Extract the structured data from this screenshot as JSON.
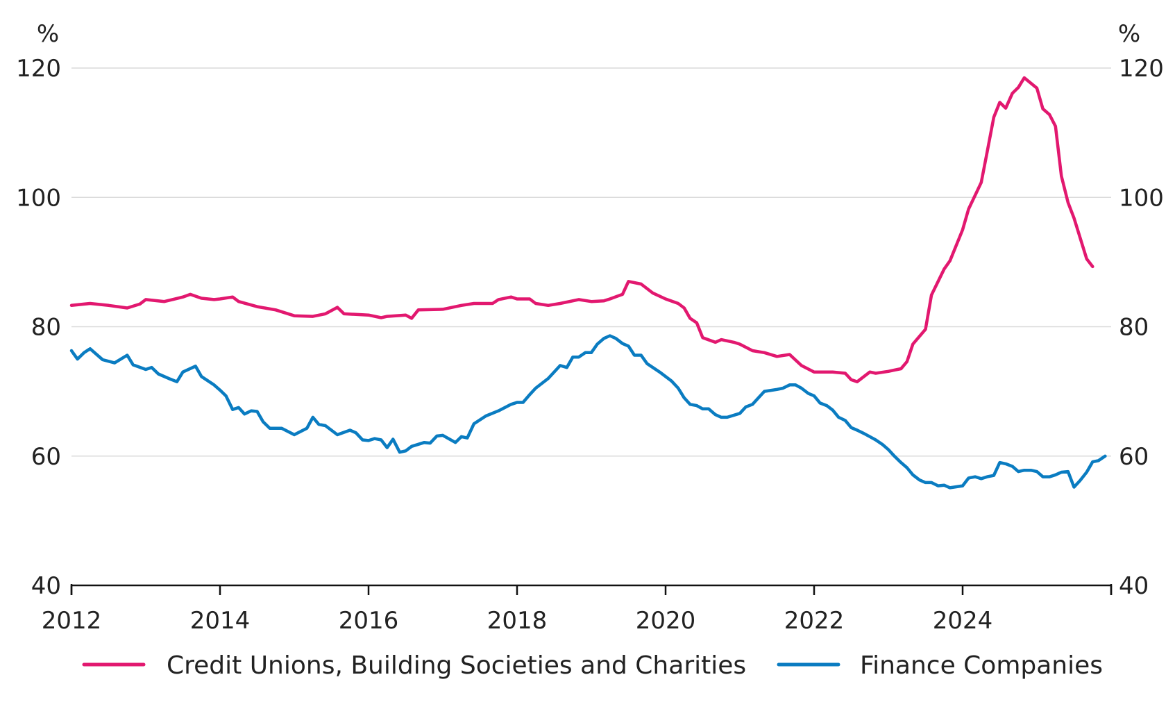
{
  "chart_data": {
    "type": "line",
    "left_unit": "%",
    "right_unit": "%",
    "xlim": [
      2012,
      2026
    ],
    "ylim": [
      40,
      120
    ],
    "yticks": [
      40,
      60,
      80,
      100,
      120
    ],
    "xticks": [
      2012,
      2014,
      2016,
      2018,
      2020,
      2022,
      2024
    ],
    "grid": true,
    "legend_position": "bottom",
    "series": [
      {
        "name": "Credit Unions, Building Societies and Charities",
        "color": "#e2186f",
        "points": [
          [
            2012.0,
            83.3
          ],
          [
            2012.25,
            83.6
          ],
          [
            2012.5,
            83.3
          ],
          [
            2012.75,
            82.9
          ],
          [
            2012.92,
            83.5
          ],
          [
            2013.0,
            84.2
          ],
          [
            2013.25,
            83.9
          ],
          [
            2013.5,
            84.6
          ],
          [
            2013.6,
            85.0
          ],
          [
            2013.75,
            84.4
          ],
          [
            2013.92,
            84.2
          ],
          [
            2014.0,
            84.3
          ],
          [
            2014.17,
            84.6
          ],
          [
            2014.25,
            83.9
          ],
          [
            2014.5,
            83.1
          ],
          [
            2014.75,
            82.6
          ],
          [
            2015.0,
            81.7
          ],
          [
            2015.25,
            81.6
          ],
          [
            2015.42,
            82.0
          ],
          [
            2015.58,
            83.0
          ],
          [
            2015.67,
            82.0
          ],
          [
            2016.0,
            81.8
          ],
          [
            2016.17,
            81.4
          ],
          [
            2016.25,
            81.6
          ],
          [
            2016.5,
            81.8
          ],
          [
            2016.58,
            81.3
          ],
          [
            2016.67,
            82.6
          ],
          [
            2017.0,
            82.7
          ],
          [
            2017.25,
            83.3
          ],
          [
            2017.42,
            83.6
          ],
          [
            2017.67,
            83.6
          ],
          [
            2017.75,
            84.2
          ],
          [
            2017.92,
            84.6
          ],
          [
            2018.0,
            84.3
          ],
          [
            2018.17,
            84.3
          ],
          [
            2018.25,
            83.6
          ],
          [
            2018.42,
            83.3
          ],
          [
            2018.58,
            83.6
          ],
          [
            2018.83,
            84.2
          ],
          [
            2019.0,
            83.9
          ],
          [
            2019.17,
            84.0
          ],
          [
            2019.25,
            84.3
          ],
          [
            2019.42,
            85.0
          ],
          [
            2019.5,
            87.0
          ],
          [
            2019.67,
            86.6
          ],
          [
            2019.83,
            85.2
          ],
          [
            2020.0,
            84.3
          ],
          [
            2020.17,
            83.6
          ],
          [
            2020.25,
            82.9
          ],
          [
            2020.33,
            81.3
          ],
          [
            2020.42,
            80.6
          ],
          [
            2020.5,
            78.3
          ],
          [
            2020.67,
            77.6
          ],
          [
            2020.75,
            78.0
          ],
          [
            2020.92,
            77.6
          ],
          [
            2021.0,
            77.3
          ],
          [
            2021.17,
            76.3
          ],
          [
            2021.33,
            76.0
          ],
          [
            2021.5,
            75.4
          ],
          [
            2021.67,
            75.7
          ],
          [
            2021.83,
            74.0
          ],
          [
            2022.0,
            73.0
          ],
          [
            2022.25,
            73.0
          ],
          [
            2022.42,
            72.8
          ],
          [
            2022.5,
            71.8
          ],
          [
            2022.58,
            71.5
          ],
          [
            2022.75,
            73.0
          ],
          [
            2022.83,
            72.8
          ],
          [
            2023.0,
            73.1
          ],
          [
            2023.08,
            73.3
          ],
          [
            2023.17,
            73.5
          ],
          [
            2023.25,
            74.6
          ],
          [
            2023.33,
            77.3
          ],
          [
            2023.5,
            79.6
          ],
          [
            2023.58,
            84.9
          ],
          [
            2023.75,
            88.9
          ],
          [
            2023.83,
            90.2
          ],
          [
            2024.0,
            95.0
          ],
          [
            2024.08,
            98.2
          ],
          [
            2024.25,
            102.3
          ],
          [
            2024.33,
            107.0
          ],
          [
            2024.42,
            112.4
          ],
          [
            2024.5,
            114.7
          ],
          [
            2024.58,
            113.8
          ],
          [
            2024.67,
            116.1
          ],
          [
            2024.75,
            117.0
          ],
          [
            2024.83,
            118.5
          ],
          [
            2025.0,
            116.9
          ],
          [
            2025.08,
            113.7
          ],
          [
            2025.17,
            112.8
          ],
          [
            2025.25,
            111.0
          ],
          [
            2025.33,
            103.3
          ],
          [
            2025.42,
            99.2
          ],
          [
            2025.5,
            96.8
          ],
          [
            2025.67,
            90.5
          ],
          [
            2025.75,
            89.3
          ]
        ]
      },
      {
        "name": "Finance Companies",
        "color": "#0a7cc1",
        "points": [
          [
            2012.0,
            76.3
          ],
          [
            2012.08,
            75.0
          ],
          [
            2012.17,
            76.0
          ],
          [
            2012.25,
            76.6
          ],
          [
            2012.42,
            74.9
          ],
          [
            2012.58,
            74.4
          ],
          [
            2012.75,
            75.6
          ],
          [
            2012.83,
            74.1
          ],
          [
            2013.0,
            73.4
          ],
          [
            2013.08,
            73.7
          ],
          [
            2013.17,
            72.7
          ],
          [
            2013.33,
            71.9
          ],
          [
            2013.42,
            71.5
          ],
          [
            2013.5,
            73.0
          ],
          [
            2013.67,
            73.9
          ],
          [
            2013.75,
            72.3
          ],
          [
            2013.92,
            71.0
          ],
          [
            2014.0,
            70.2
          ],
          [
            2014.08,
            69.3
          ],
          [
            2014.17,
            67.2
          ],
          [
            2014.25,
            67.5
          ],
          [
            2014.33,
            66.5
          ],
          [
            2014.42,
            67.0
          ],
          [
            2014.5,
            66.9
          ],
          [
            2014.58,
            65.3
          ],
          [
            2014.67,
            64.3
          ],
          [
            2014.83,
            64.3
          ],
          [
            2015.0,
            63.3
          ],
          [
            2015.17,
            64.3
          ],
          [
            2015.25,
            66.0
          ],
          [
            2015.33,
            64.9
          ],
          [
            2015.42,
            64.7
          ],
          [
            2015.58,
            63.3
          ],
          [
            2015.75,
            64.0
          ],
          [
            2015.83,
            63.6
          ],
          [
            2015.92,
            62.5
          ],
          [
            2016.0,
            62.4
          ],
          [
            2016.08,
            62.7
          ],
          [
            2016.17,
            62.5
          ],
          [
            2016.25,
            61.3
          ],
          [
            2016.33,
            62.6
          ],
          [
            2016.42,
            60.6
          ],
          [
            2016.5,
            60.8
          ],
          [
            2016.58,
            61.5
          ],
          [
            2016.75,
            62.1
          ],
          [
            2016.83,
            62.0
          ],
          [
            2016.92,
            63.1
          ],
          [
            2017.0,
            63.2
          ],
          [
            2017.17,
            62.1
          ],
          [
            2017.25,
            63.0
          ],
          [
            2017.33,
            62.8
          ],
          [
            2017.42,
            65.0
          ],
          [
            2017.58,
            66.2
          ],
          [
            2017.75,
            67.0
          ],
          [
            2017.92,
            68.0
          ],
          [
            2018.0,
            68.3
          ],
          [
            2018.08,
            68.3
          ],
          [
            2018.17,
            69.5
          ],
          [
            2018.25,
            70.5
          ],
          [
            2018.42,
            72.0
          ],
          [
            2018.58,
            74.0
          ],
          [
            2018.67,
            73.7
          ],
          [
            2018.75,
            75.3
          ],
          [
            2018.83,
            75.3
          ],
          [
            2018.92,
            76.0
          ],
          [
            2019.0,
            76.0
          ],
          [
            2019.08,
            77.3
          ],
          [
            2019.17,
            78.2
          ],
          [
            2019.25,
            78.6
          ],
          [
            2019.33,
            78.2
          ],
          [
            2019.42,
            77.4
          ],
          [
            2019.5,
            77.0
          ],
          [
            2019.58,
            75.6
          ],
          [
            2019.67,
            75.6
          ],
          [
            2019.75,
            74.3
          ],
          [
            2019.92,
            73.0
          ],
          [
            2020.08,
            71.6
          ],
          [
            2020.17,
            70.5
          ],
          [
            2020.25,
            69.0
          ],
          [
            2020.33,
            68.0
          ],
          [
            2020.42,
            67.8
          ],
          [
            2020.5,
            67.3
          ],
          [
            2020.58,
            67.3
          ],
          [
            2020.67,
            66.4
          ],
          [
            2020.75,
            66.0
          ],
          [
            2020.83,
            66.0
          ],
          [
            2021.0,
            66.6
          ],
          [
            2021.08,
            67.6
          ],
          [
            2021.17,
            68.0
          ],
          [
            2021.25,
            69.0
          ],
          [
            2021.33,
            70.0
          ],
          [
            2021.5,
            70.3
          ],
          [
            2021.58,
            70.5
          ],
          [
            2021.67,
            71.0
          ],
          [
            2021.75,
            71.0
          ],
          [
            2021.83,
            70.5
          ],
          [
            2021.92,
            69.7
          ],
          [
            2022.0,
            69.3
          ],
          [
            2022.08,
            68.2
          ],
          [
            2022.17,
            67.8
          ],
          [
            2022.25,
            67.1
          ],
          [
            2022.33,
            66.0
          ],
          [
            2022.42,
            65.5
          ],
          [
            2022.5,
            64.4
          ],
          [
            2022.58,
            64.0
          ],
          [
            2022.67,
            63.5
          ],
          [
            2022.75,
            63.0
          ],
          [
            2022.83,
            62.5
          ],
          [
            2022.92,
            61.8
          ],
          [
            2023.0,
            61.0
          ],
          [
            2023.08,
            60.0
          ],
          [
            2023.17,
            59.0
          ],
          [
            2023.25,
            58.2
          ],
          [
            2023.33,
            57.1
          ],
          [
            2023.42,
            56.3
          ],
          [
            2023.5,
            55.9
          ],
          [
            2023.58,
            55.9
          ],
          [
            2023.67,
            55.4
          ],
          [
            2023.75,
            55.5
          ],
          [
            2023.83,
            55.1
          ],
          [
            2024.0,
            55.4
          ],
          [
            2024.08,
            56.6
          ],
          [
            2024.17,
            56.8
          ],
          [
            2024.25,
            56.5
          ],
          [
            2024.33,
            56.8
          ],
          [
            2024.42,
            57.0
          ],
          [
            2024.5,
            59.0
          ],
          [
            2024.58,
            58.8
          ],
          [
            2024.67,
            58.4
          ],
          [
            2024.75,
            57.6
          ],
          [
            2024.83,
            57.8
          ],
          [
            2024.92,
            57.8
          ],
          [
            2025.0,
            57.6
          ],
          [
            2025.08,
            56.8
          ],
          [
            2025.17,
            56.8
          ],
          [
            2025.25,
            57.1
          ],
          [
            2025.33,
            57.5
          ],
          [
            2025.42,
            57.6
          ],
          [
            2025.5,
            55.2
          ],
          [
            2025.58,
            56.2
          ],
          [
            2025.67,
            57.5
          ],
          [
            2025.75,
            59.1
          ],
          [
            2025.83,
            59.3
          ],
          [
            2025.92,
            60.0
          ]
        ]
      }
    ]
  }
}
